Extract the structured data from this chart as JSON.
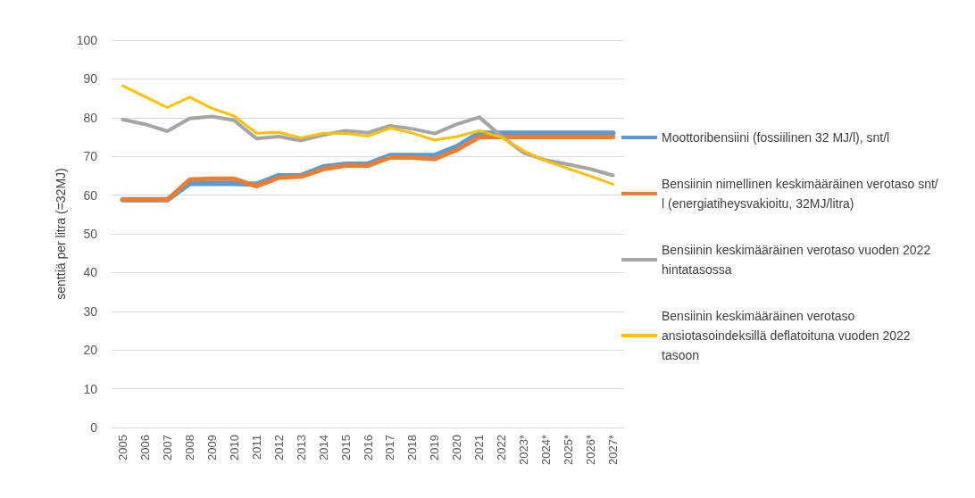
{
  "chart_data": {
    "type": "line",
    "ylabel": "senttiä per litra (=32MJ)",
    "categories": [
      "2005",
      "2006",
      "2007",
      "2008",
      "2009",
      "2010",
      "2011",
      "2012",
      "2013",
      "2014",
      "2015",
      "2016",
      "2017",
      "2018",
      "2019",
      "2020",
      "2021",
      "2022",
      "2023*",
      "2024*",
      "2025*",
      "2026*",
      "2027*"
    ],
    "series": [
      {
        "name": "Moottoribensiini (fossiilinen 32 MJ/l), snt/l",
        "color": "#5b9bd5",
        "values": [
          58.8,
          58.8,
          58.8,
          63,
          63,
          63,
          62.8,
          65,
          65,
          67.3,
          68,
          68,
          70.2,
          70.2,
          70.2,
          72.5,
          76,
          76,
          76,
          76,
          76,
          76,
          76
        ]
      },
      {
        "name": "Bensiinin nimellinen keskimääräinen verotaso snt/l (energiatiheysvakioitu, 32MJ/litra)",
        "color": "#ed7d31",
        "values": [
          58.8,
          58.8,
          58.8,
          64,
          64.2,
          64.2,
          62.3,
          64.5,
          64.8,
          66.7,
          67.6,
          67.6,
          69.7,
          69.7,
          69.3,
          71.7,
          75,
          75,
          75,
          75,
          75,
          75,
          75
        ]
      },
      {
        "name": "Bensiinin keskimääräinen verotaso vuoden 2022 hintatasossa",
        "color": "#a5a5a5",
        "values": [
          79.5,
          78.3,
          76.5,
          79.8,
          80.3,
          79.3,
          74.6,
          75.1,
          74.1,
          75.5,
          76.6,
          76.1,
          77.9,
          77.1,
          75.9,
          78.3,
          80.1,
          75.2,
          70.9,
          69,
          67.9,
          66.7,
          65.1
        ]
      },
      {
        "name": "Bensiinin keskimääräinen verotaso ansiotasoindeksillä deflatoituna vuoden 2022 tasoon",
        "color": "#ffc000",
        "values": [
          88.2,
          85.4,
          82.6,
          85.3,
          82.4,
          80.4,
          76,
          76.2,
          74.8,
          76,
          75.9,
          75.2,
          77.3,
          76,
          74.2,
          75.1,
          76.6,
          74.9,
          71.4,
          68.8,
          66.8,
          64.9,
          62.8
        ]
      }
    ],
    "ylim": [
      0,
      100
    ],
    "yticks": [
      0,
      10,
      20,
      30,
      40,
      50,
      60,
      70,
      80,
      90,
      100
    ],
    "grid": "y",
    "legend": "right",
    "marker": "none",
    "line_style": "solid"
  }
}
